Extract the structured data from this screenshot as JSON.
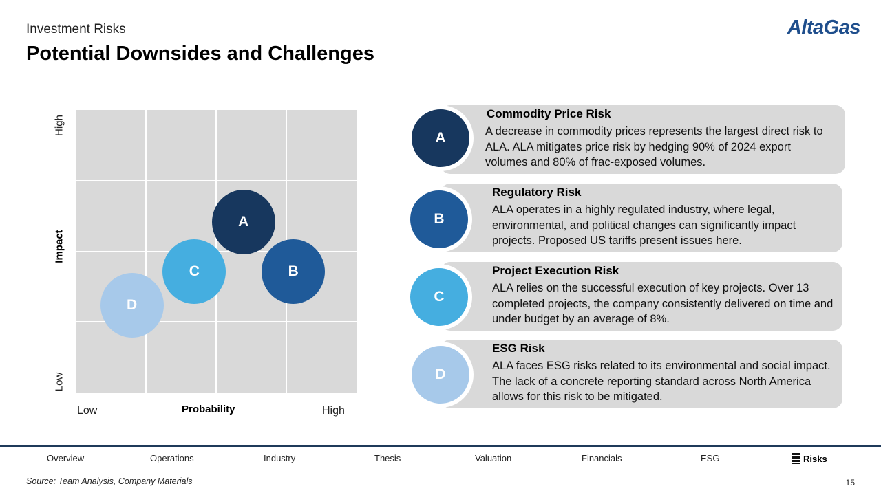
{
  "header": {
    "subtitle": "Investment Risks",
    "title": "Potential Downsides and Challenges",
    "logo": "AltaGas"
  },
  "chart_data": {
    "type": "scatter",
    "title": "",
    "xlabel": "Probability",
    "ylabel": "Impact",
    "x_tick_labels": [
      "Low",
      "High"
    ],
    "y_tick_labels": [
      "Low",
      "High"
    ],
    "xlim": [
      0,
      4
    ],
    "ylim": [
      0,
      4
    ],
    "grid": true,
    "points": [
      {
        "label": "A",
        "x": 2.39,
        "y": 2.42,
        "color": "#17375e"
      },
      {
        "label": "B",
        "x": 3.1,
        "y": 1.72,
        "color": "#1f5a99"
      },
      {
        "label": "C",
        "x": 1.69,
        "y": 1.72,
        "color": "#45aee0"
      },
      {
        "label": "D",
        "x": 0.8,
        "y": 1.24,
        "color": "#a7c9ea"
      }
    ]
  },
  "risks": [
    {
      "letter": "A",
      "title": "Commodity Price Risk",
      "desc": "A decrease in commodity prices represents the largest direct risk to ALA. ALA mitigates price risk by hedging 90% of 2024 export volumes and 80% of frac-exposed volumes.",
      "color": "#17375e"
    },
    {
      "letter": "B",
      "title": "Regulatory Risk",
      "desc": "ALA operates in a highly regulated industry, where legal, environmental, and political changes can significantly impact projects. Proposed US tariffs present issues here.",
      "color": "#1f5a99"
    },
    {
      "letter": "C",
      "title": "Project Execution Risk",
      "desc": "ALA relies on the successful execution of key projects. Over 13 completed projects, the company consistently delivered on time and under budget by an average of 8%.",
      "color": "#45aee0"
    },
    {
      "letter": "D",
      "title": "ESG Risk",
      "desc": "ALA faces ESG risks related to its environmental and social impact. The lack of a concrete reporting standard across North America allows for this risk to be mitigated.",
      "color": "#a7c9ea"
    }
  ],
  "nav": {
    "items": [
      "Overview",
      "Operations",
      "Industry",
      "Thesis",
      "Valuation",
      "Financials",
      "ESG",
      "Risks"
    ],
    "active": "Risks"
  },
  "footer": {
    "source": "Source: Team Analysis, Company Materials",
    "page": "15"
  }
}
